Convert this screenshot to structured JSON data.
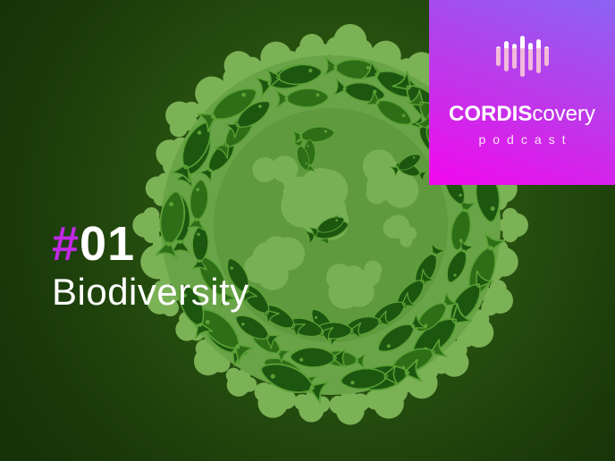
{
  "brand": {
    "name_bold": "CORDIS",
    "name_light": "covery",
    "subtitle": "podcast"
  },
  "episode": {
    "number_prefix": "#",
    "number": "01",
    "title": "Biodiversity"
  },
  "icons": {
    "logo": "waveform-icon",
    "artwork": "earth-made-of-animals-illustration"
  },
  "palette": {
    "brand_gradient_top": "#8b64f2",
    "brand_gradient_mid": "#c234e9",
    "brand_gradient_bottom": "#f307ef",
    "hash_magenta": "#c128e6",
    "text_white": "#ffffff",
    "podcast_text": "#fbe4f6",
    "wave_pink": "#f2b9da",
    "bg_center": "#2e5d12",
    "bg_edge": "#17330a",
    "leaf_light": "#7cb256",
    "leaf_mid": "#6aa448",
    "fish_dark": "#1c560f",
    "fish_mid": "#2e6e16",
    "interior": "#5f9b3e",
    "animal_light": "#79b055",
    "outline": "#5aa136"
  }
}
